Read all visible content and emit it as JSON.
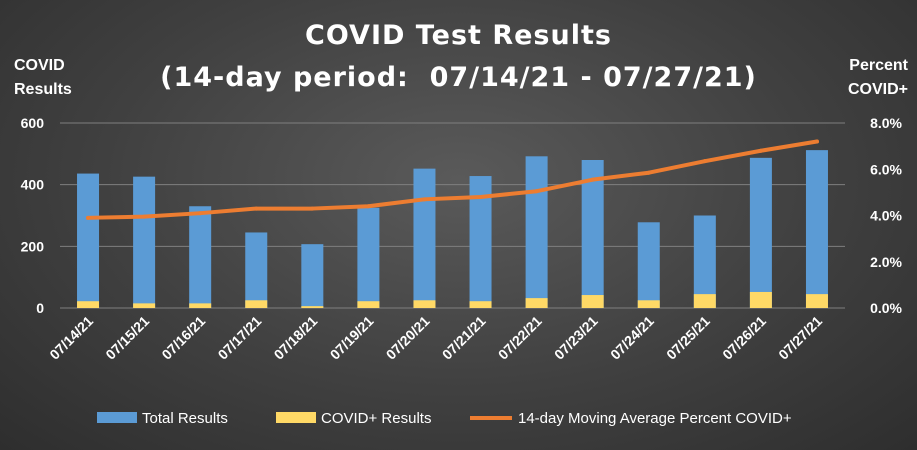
{
  "chart_data": {
    "type": "bar",
    "title": "COVID Test Results",
    "subtitle": "(14-day period:  07/14/21 - 07/27/21)",
    "ylabel_left": [
      "COVID",
      "Results"
    ],
    "ylabel_right": [
      "Percent",
      "COVID+"
    ],
    "categories": [
      "07/14/21",
      "07/15/21",
      "07/16/21",
      "07/17/21",
      "07/18/21",
      "07/19/21",
      "07/20/21",
      "07/21/21",
      "07/22/21",
      "07/23/21",
      "07/24/21",
      "07/25/21",
      "07/26/21",
      "07/27/21"
    ],
    "ylim_left": [
      0,
      600
    ],
    "yticks_left": [
      "0",
      "200",
      "400",
      "600"
    ],
    "ylim_right": [
      0,
      8.0
    ],
    "yticks_right": [
      "0.0%",
      "2.0%",
      "4.0%",
      "6.0%",
      "8.0%"
    ],
    "grid": true,
    "legend_position": "bottom",
    "series": [
      {
        "name": "Total Results",
        "type": "bar",
        "axis": "left",
        "color": "#5b9bd5",
        "values": [
          436,
          426,
          330,
          245,
          207,
          325,
          452,
          428,
          492,
          480,
          278,
          300,
          487,
          512
        ]
      },
      {
        "name": "COVID+ Results",
        "type": "bar",
        "axis": "left",
        "color": "#ffd966",
        "values": [
          22,
          15,
          15,
          25,
          6,
          22,
          25,
          22,
          32,
          42,
          25,
          45,
          52,
          45
        ]
      },
      {
        "name": "14-day Moving Average Percent COVID+",
        "type": "line",
        "axis": "right",
        "color": "#ed7d31",
        "values": [
          3.9,
          3.95,
          4.1,
          4.3,
          4.3,
          4.4,
          4.7,
          4.8,
          5.05,
          5.55,
          5.85,
          6.35,
          6.8,
          7.2
        ]
      }
    ]
  }
}
